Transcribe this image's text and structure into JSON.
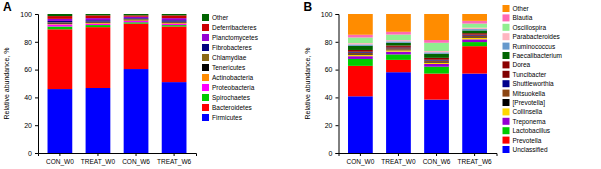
{
  "chart_data": [
    {
      "type": "bar",
      "title": "A",
      "y_label": "Relative abundance, %",
      "stacked": true,
      "legend": "right",
      "categories": [
        "CON_W0",
        "TREAT_W0",
        "CON_W6",
        "TREAT_W6"
      ],
      "ylim": [
        0,
        100
      ],
      "yticks": [
        0,
        20,
        40,
        60,
        80,
        100
      ],
      "series": [
        {
          "name": "Firmicutes",
          "color": "#0000FF",
          "values": [
            46,
            46.76616915422886,
            60.396039603960396,
            51
          ]
        },
        {
          "name": "Bacteroidetes",
          "color": "#FF0000",
          "values": [
            43,
            43.78109452736318,
            32.67326732673267,
            40
          ]
        },
        {
          "name": "Spirochaetes",
          "color": "#00CC00",
          "values": [
            2,
            1.4925373134328357,
            0.9900990099009901,
            1
          ]
        },
        {
          "name": "Proteobacteria",
          "color": "#FF00FF",
          "values": [
            1.5,
            0.9950248756218906,
            0.9900990099009901,
            1
          ]
        },
        {
          "name": "Actinobacteria",
          "color": "#FF8C00",
          "values": [
            0.5,
            0.4975124378109453,
            0.49504950495049505,
            0.5
          ]
        },
        {
          "name": "Tenericutes",
          "color": "#000000",
          "values": [
            0.5,
            0.4975124378109453,
            0.49504950495049505,
            0.5
          ]
        },
        {
          "name": "Chlamydiae",
          "color": "#8B6914",
          "values": [
            0.5,
            0.4975124378109453,
            0.49504950495049505,
            0.5
          ]
        },
        {
          "name": "Fibrobacteres",
          "color": "#000080",
          "values": [
            1,
            0.9950248756218906,
            0.49504950495049505,
            1
          ]
        },
        {
          "name": "Planctomycetes",
          "color": "#9400D3",
          "values": [
            1.5,
            1.4925373134328357,
            0.9900990099009901,
            1.5
          ]
        },
        {
          "name": "Deferribacteres",
          "color": "#CC0000",
          "values": [
            2,
            1.9900497512437811,
            0.9900990099009901,
            2
          ]
        },
        {
          "name": "Other",
          "color": "#006400",
          "values": [
            1.5,
            0.9950248756218906,
            0.9900990099009901,
            1
          ]
        }
      ]
    },
    {
      "type": "bar",
      "title": "B",
      "y_label": "Relative abundance, %",
      "stacked": true,
      "legend": "right",
      "categories": [
        "CON_W0",
        "TREAT_W0",
        "CON_W6",
        "TREAT_W6"
      ],
      "ylim": [
        0,
        100
      ],
      "yticks": [
        0,
        20,
        40,
        60,
        80,
        100
      ],
      "series": [
        {
          "name": "Unclassified",
          "color": "#0000FF",
          "values": [
            40.79601990049751,
            58.12807881773399,
            38.42364532019704,
            57.142857142857146
          ]
        },
        {
          "name": "Prevotella",
          "color": "#FF0000",
          "values": [
            21.890547263681594,
            8.866995073891626,
            18.7192118226601,
            19.704433497536947
          ]
        },
        {
          "name": "Lactobacillus",
          "color": "#00CC00",
          "values": [
            4.975124378109453,
            3.9408866995073892,
            4.926108374384236,
            2.955665024630542
          ]
        },
        {
          "name": "Treponema",
          "color": "#9400D3",
          "values": [
            1.9900497512437811,
            1.9704433497536946,
            1.9704433497536946,
            1.9704433497536946
          ]
        },
        {
          "name": "Collinsella",
          "color": "#FFD700",
          "values": [
            0.9950248756218906,
            0.9852216748768473,
            0.9852216748768473,
            0.9852216748768473
          ]
        },
        {
          "name": "[Prevotella]",
          "color": "#000000",
          "values": [
            0.4975124378109453,
            0.49261083743842365,
            0.49261083743842365,
            0.49261083743842365
          ]
        },
        {
          "name": "Mitsuokella",
          "color": "#8B4513",
          "values": [
            0.9950248756218906,
            0.9852216748768473,
            0.9852216748768473,
            0.9852216748768473
          ]
        },
        {
          "name": "Shuttleworthia",
          "color": "#00008B",
          "values": [
            0.4975124378109453,
            0.49261083743842365,
            0.49261083743842365,
            0.49261083743842365
          ]
        },
        {
          "name": "Tuncibacter",
          "color": "#800000",
          "values": [
            0.4975124378109453,
            0.49261083743842365,
            0.49261083743842365,
            0.49261083743842365
          ]
        },
        {
          "name": "Dorea",
          "color": "#8B0000",
          "values": [
            0.9950248756218906,
            0.9852216748768473,
            0.9852216748768473,
            0.9852216748768473
          ]
        },
        {
          "name": "Faecalibacterium",
          "color": "#006400",
          "values": [
            2.9850746268656714,
            1.9704433497536946,
            2.955665024630542,
            1.9704433497536946
          ]
        },
        {
          "name": "Ruminococcus",
          "color": "#6699CC",
          "values": [
            0.9950248756218906,
            0.9852216748768473,
            0.9852216748768473,
            0.9852216748768473
          ]
        },
        {
          "name": "Parabacteroides",
          "color": "#FFB6C1",
          "values": [
            0.9950248756218906,
            0.9852216748768473,
            0.9852216748768473,
            0.9852216748768473
          ]
        },
        {
          "name": "Oscillospira",
          "color": "#90EE90",
          "values": [
            3.9800995024875623,
            3.9408866995073892,
            5.911330049261084,
            2.955665024630542
          ]
        },
        {
          "name": "Blautia",
          "color": "#FF69B4",
          "values": [
            1.9900497512437811,
            1.9704433497536946,
            1.9704433497536946,
            1.9704433497536946
          ]
        },
        {
          "name": "Other",
          "color": "#FF8C00",
          "values": [
            14.925373134328359,
            12.807881773399014,
            18.7192118226601,
            4.926108374384236
          ]
        }
      ]
    }
  ]
}
